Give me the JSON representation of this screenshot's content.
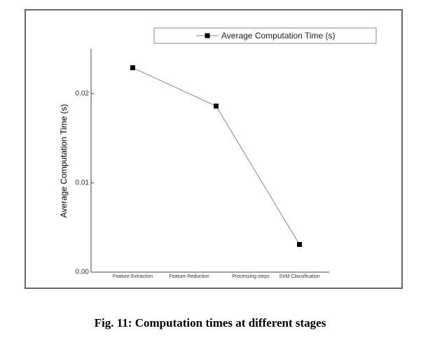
{
  "chart_data": {
    "type": "line",
    "caption": "Fig. 11: Computation times at different stages",
    "ylabel": "Average Computation Time (s)",
    "xlabel": "Processing steps",
    "categories": [
      "Feature Extraction",
      "Feature Reduction",
      "SVM Classification"
    ],
    "series": [
      {
        "name": "Average Computation Time (s)",
        "color": "#000000",
        "values": [
          0.0229,
          0.0186,
          0.0031
        ]
      }
    ],
    "ylim": [
      0,
      0.025
    ],
    "yticks": [
      {
        "value": 0,
        "label": "0.00"
      },
      {
        "value": 0.01,
        "label": "0.01"
      },
      {
        "value": 0.02,
        "label": "0.02"
      }
    ],
    "grid": false,
    "legend": "top-right"
  }
}
